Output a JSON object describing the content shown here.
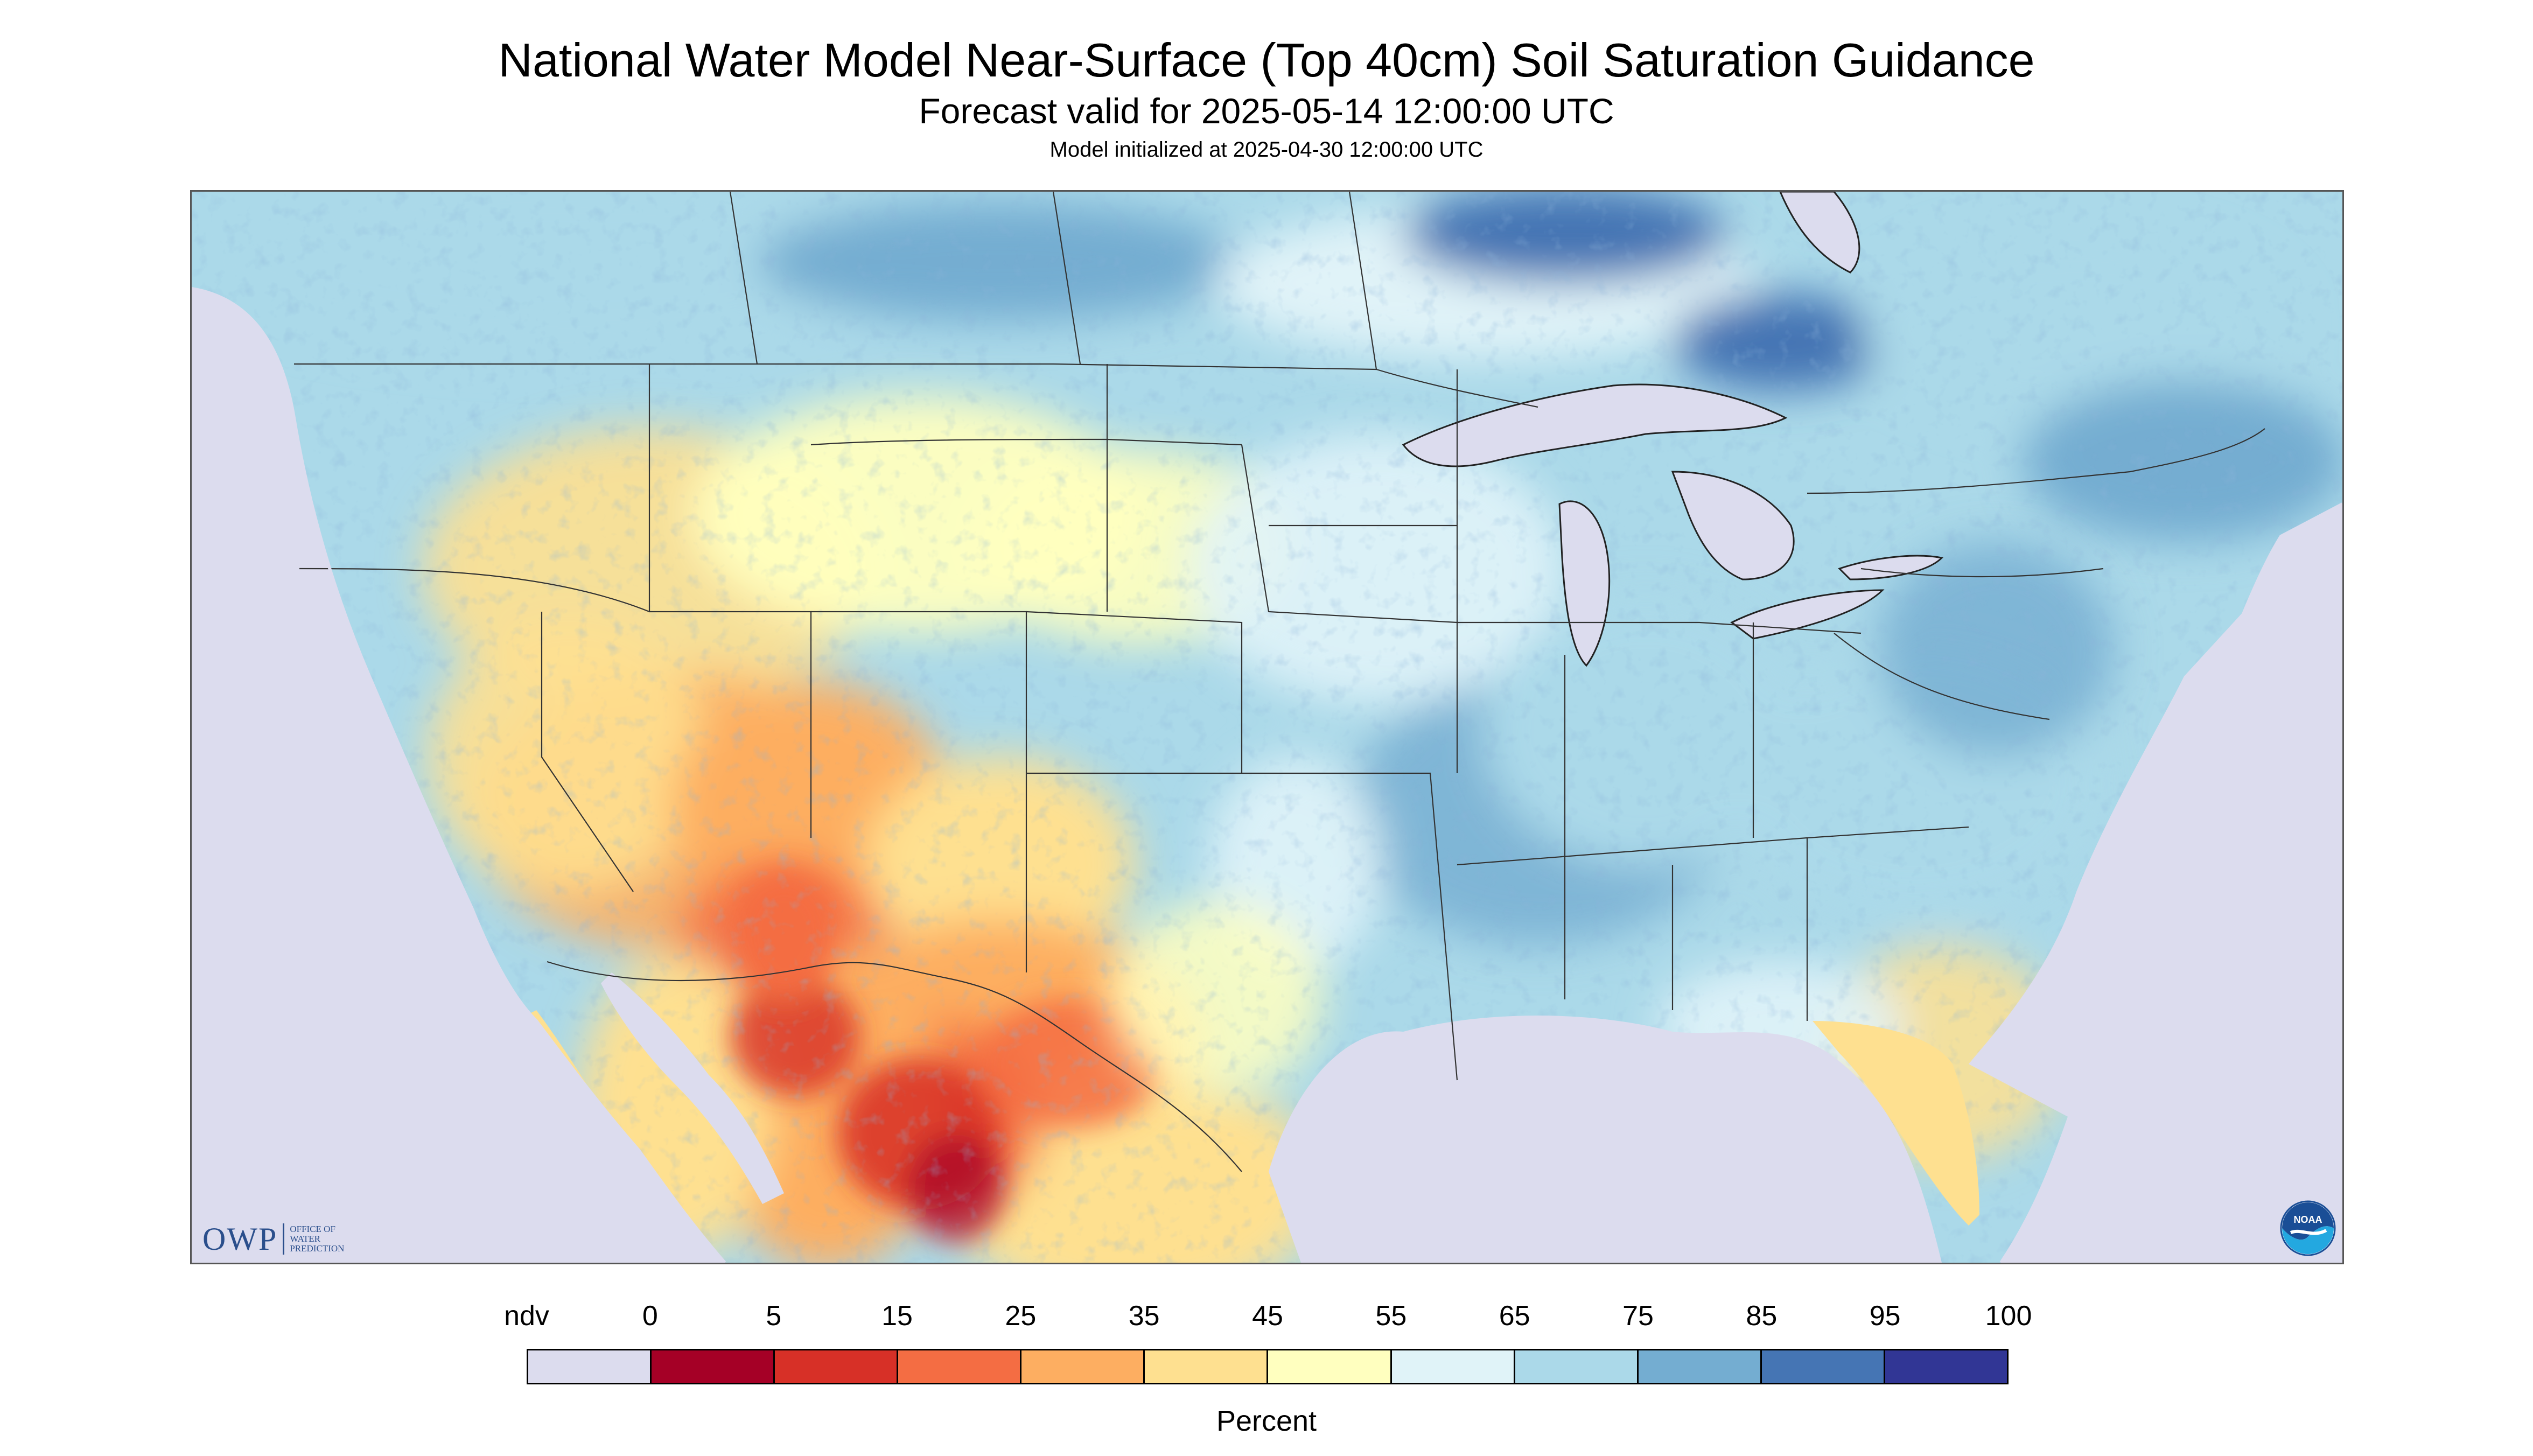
{
  "title": "National Water Model Near-Surface (Top 40cm) Soil Saturation Guidance",
  "subtitle": "Forecast valid for 2025-05-14 12:00:00 UTC",
  "init_text": "Model initialized at 2025-04-30 12:00:00 UTC",
  "logos": {
    "owp_main": "OWP",
    "owp_sub": [
      "OFFICE OF",
      "WATER",
      "PREDICTION"
    ],
    "noaa_text": "NOAA"
  },
  "legend": {
    "unit_label": "Percent",
    "labels": [
      "ndv",
      "0",
      "5",
      "15",
      "25",
      "35",
      "45",
      "55",
      "65",
      "75",
      "85",
      "95",
      "100"
    ],
    "bins": [
      {
        "label": "ndv",
        "color": "#dcdcee"
      },
      {
        "label": "0-5",
        "color": "#a50026"
      },
      {
        "label": "5-15",
        "color": "#d73027"
      },
      {
        "label": "15-25",
        "color": "#f46d43"
      },
      {
        "label": "25-35",
        "color": "#fdae61"
      },
      {
        "label": "35-45",
        "color": "#fee090"
      },
      {
        "label": "45-55",
        "color": "#ffffbf"
      },
      {
        "label": "55-65",
        "color": "#e0f3f8"
      },
      {
        "label": "65-75",
        "color": "#abd9e9"
      },
      {
        "label": "75-85",
        "color": "#74add1"
      },
      {
        "label": "85-95",
        "color": "#4575b4"
      },
      {
        "label": "95-100",
        "color": "#313695"
      }
    ]
  },
  "colors": {
    "ocean": "#dcdcee",
    "land_base": "#abd9e9",
    "boundary": "#333333"
  }
}
